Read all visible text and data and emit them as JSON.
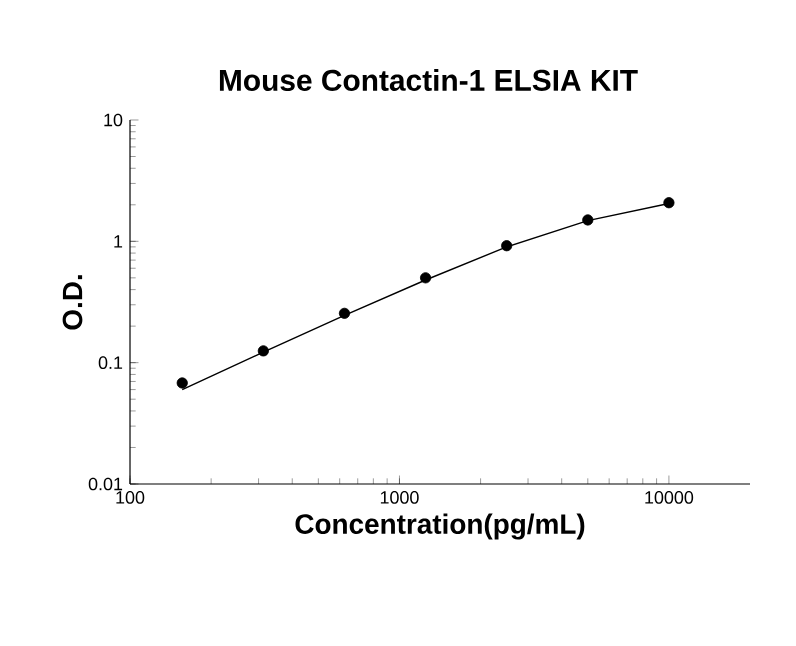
{
  "chart_data": {
    "type": "scatter",
    "title": "Mouse Contactin-1 ELSIA KIT",
    "xlabel": "Concentration(pg/mL)",
    "ylabel": "O.D.",
    "log": "xy",
    "xlim": [
      100,
      20000
    ],
    "ylim": [
      0.01,
      10
    ],
    "xticks": [
      100,
      1000,
      10000
    ],
    "yticks": [
      0.01,
      0.1,
      1,
      10
    ],
    "grid": false,
    "series": [
      {
        "color": "#000000",
        "marker": "circle",
        "x": [
          156.25,
          312.5,
          625,
          1250,
          2500,
          5000,
          10000
        ],
        "values": [
          0.068,
          0.125,
          0.255,
          0.5,
          0.92,
          1.5,
          2.08
        ]
      },
      {
        "type": "line",
        "color": "#000000",
        "marker": "none",
        "x": [
          156.25,
          312.5,
          625,
          1250,
          2500,
          5000,
          10000
        ],
        "values": [
          0.06,
          0.122,
          0.245,
          0.48,
          0.9,
          1.48,
          2.05
        ]
      }
    ]
  }
}
